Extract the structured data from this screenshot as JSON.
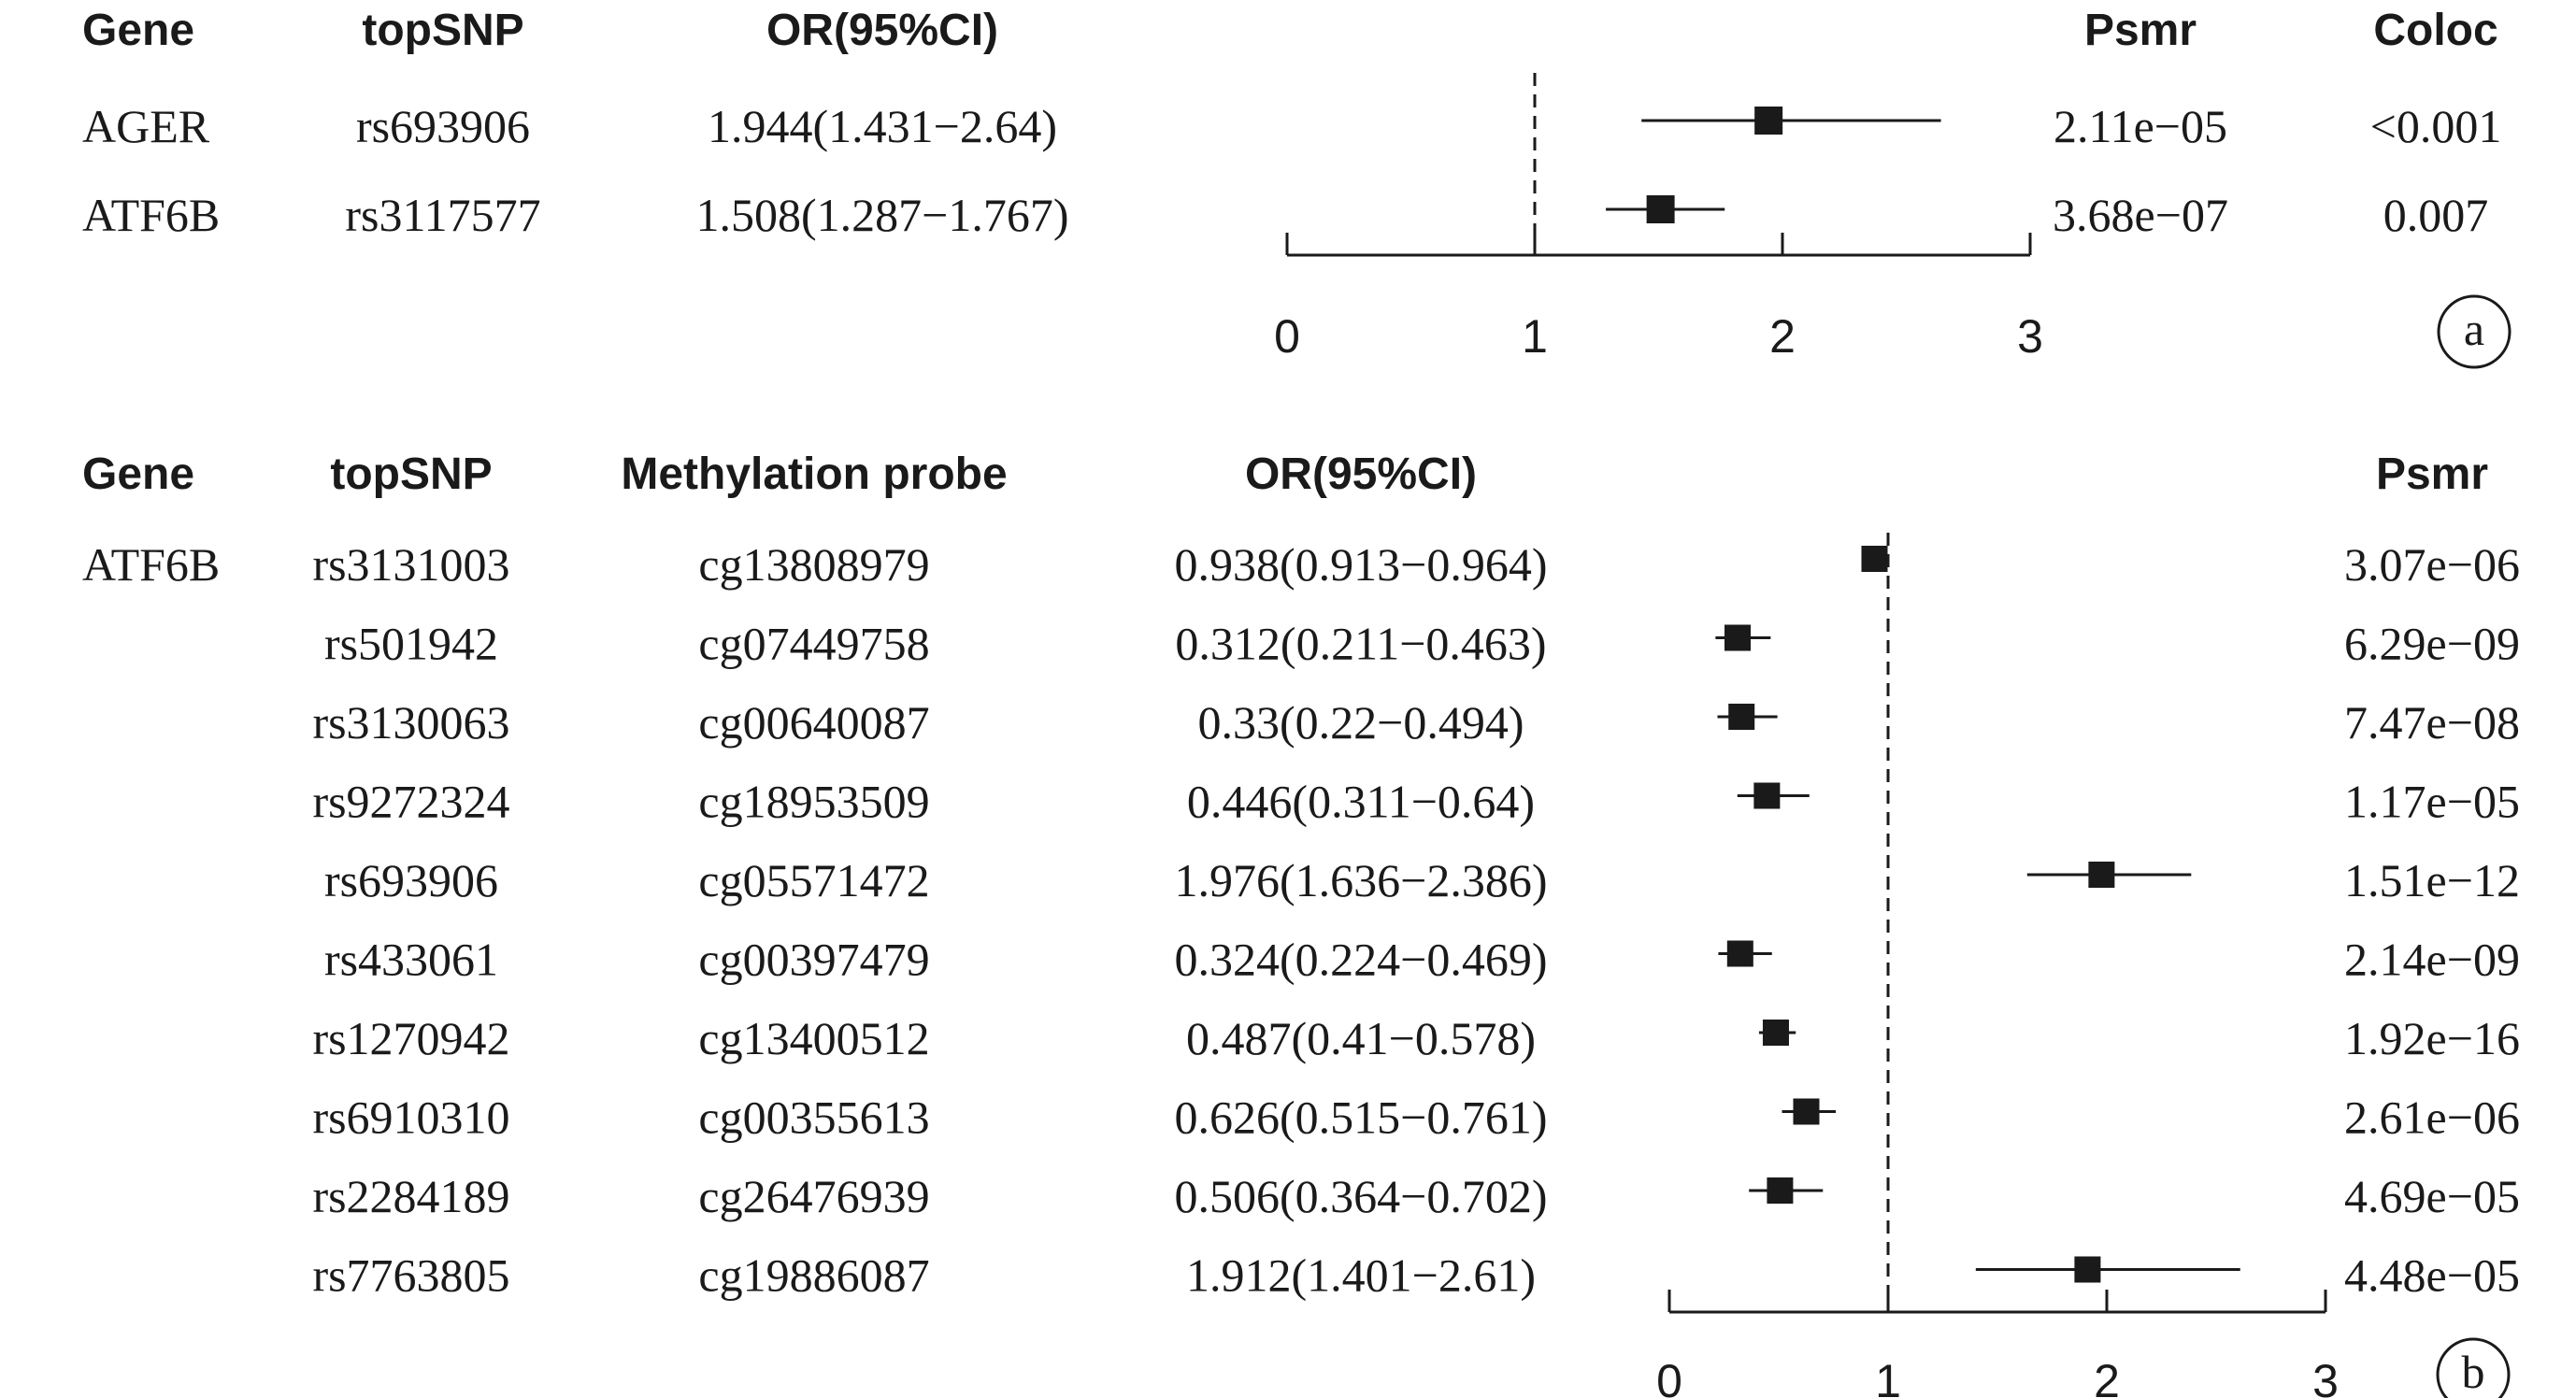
{
  "chart_data": [
    {
      "type": "forest",
      "panel_label": "a",
      "columns": [
        {
          "key": "gene",
          "header": "Gene"
        },
        {
          "key": "snp",
          "header": "topSNP"
        },
        {
          "key": "or_text",
          "header": "OR(95%CI)"
        },
        {
          "key": "psmr",
          "header": "Psmr"
        },
        {
          "key": "coloc",
          "header": "Coloc"
        }
      ],
      "rows": [
        {
          "gene": "AGER",
          "snp": "rs693906",
          "or_text": "1.944(1.431−2.64)",
          "psmr": "2.11e−05",
          "coloc": "<0.001",
          "or": 1.944,
          "lo": 1.431,
          "hi": 2.64
        },
        {
          "gene": "ATF6B",
          "snp": "rs3117577",
          "or_text": "1.508(1.287−1.767)",
          "psmr": "3.68e−07",
          "coloc": "0.007",
          "or": 1.508,
          "lo": 1.287,
          "hi": 1.767
        }
      ],
      "xlim": [
        0,
        3
      ],
      "ticks": [
        "0",
        "1",
        "2",
        "3"
      ],
      "ref_line": 1
    },
    {
      "type": "forest",
      "panel_label": "b",
      "columns": [
        {
          "key": "gene",
          "header": "Gene"
        },
        {
          "key": "snp",
          "header": "topSNP"
        },
        {
          "key": "probe",
          "header": "Methylation probe"
        },
        {
          "key": "or_text",
          "header": "OR(95%CI)"
        },
        {
          "key": "psmr",
          "header": "Psmr"
        }
      ],
      "rows": [
        {
          "gene": "ATF6B",
          "snp": "rs3131003",
          "probe": "cg13808979",
          "or_text": "0.938(0.913−0.964)",
          "psmr": "3.07e−06",
          "or": 0.938,
          "lo": 0.913,
          "hi": 0.964
        },
        {
          "gene": "",
          "snp": "rs501942",
          "probe": "cg07449758",
          "or_text": "0.312(0.211−0.463)",
          "psmr": "6.29e−09",
          "or": 0.312,
          "lo": 0.211,
          "hi": 0.463
        },
        {
          "gene": "",
          "snp": "rs3130063",
          "probe": "cg00640087",
          "or_text": "0.33(0.22−0.494)",
          "psmr": "7.47e−08",
          "or": 0.33,
          "lo": 0.22,
          "hi": 0.494
        },
        {
          "gene": "",
          "snp": "rs9272324",
          "probe": "cg18953509",
          "or_text": "0.446(0.311−0.64)",
          "psmr": "1.17e−05",
          "or": 0.446,
          "lo": 0.311,
          "hi": 0.64
        },
        {
          "gene": "",
          "snp": "rs693906",
          "probe": "cg05571472",
          "or_text": "1.976(1.636−2.386)",
          "psmr": "1.51e−12",
          "or": 1.976,
          "lo": 1.636,
          "hi": 2.386
        },
        {
          "gene": "",
          "snp": "rs433061",
          "probe": "cg00397479",
          "or_text": "0.324(0.224−0.469)",
          "psmr": "2.14e−09",
          "or": 0.324,
          "lo": 0.224,
          "hi": 0.469
        },
        {
          "gene": "",
          "snp": "rs1270942",
          "probe": "cg13400512",
          "or_text": "0.487(0.41−0.578)",
          "psmr": "1.92e−16",
          "or": 0.487,
          "lo": 0.41,
          "hi": 0.578
        },
        {
          "gene": "",
          "snp": "rs6910310",
          "probe": "cg00355613",
          "or_text": "0.626(0.515−0.761)",
          "psmr": "2.61e−06",
          "or": 0.626,
          "lo": 0.515,
          "hi": 0.761
        },
        {
          "gene": "",
          "snp": "rs2284189",
          "probe": "cg26476939",
          "or_text": "0.506(0.364−0.702)",
          "psmr": "4.69e−05",
          "or": 0.506,
          "lo": 0.364,
          "hi": 0.702
        },
        {
          "gene": "",
          "snp": "rs7763805",
          "probe": "cg19886087",
          "or_text": "1.912(1.401−2.61)",
          "psmr": "4.48e−05",
          "or": 1.912,
          "lo": 1.401,
          "hi": 2.61
        }
      ],
      "xlim": [
        0,
        3
      ],
      "ticks": [
        "0",
        "1",
        "2",
        "3"
      ],
      "ref_line": 1
    }
  ]
}
